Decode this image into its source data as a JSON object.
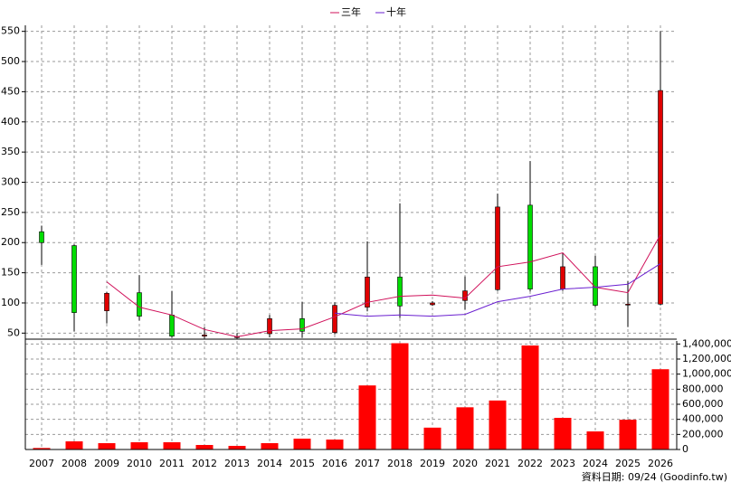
{
  "chart_data": [
    {
      "type": "candlestick",
      "open": [
        218,
        195,
        87,
        117,
        80,
        45,
        43,
        49,
        74,
        51,
        93,
        143,
        97,
        104,
        122,
        262,
        123,
        160,
        98,
        98
      ],
      "high": [
        228,
        197,
        118,
        146,
        120,
        60,
        50,
        80,
        102,
        101,
        202,
        265,
        103,
        144,
        281,
        335,
        183,
        178,
        136,
        550
      ],
      "low": [
        163,
        53,
        66,
        71,
        42,
        41,
        41,
        43,
        42,
        48,
        86,
        75,
        95,
        89,
        120,
        119,
        120,
        93,
        60,
        96
      ],
      "close": [
        200,
        84,
        116,
        78,
        45,
        47,
        44,
        74,
        53,
        96,
        143,
        95,
        100,
        120,
        259,
        123,
        160,
        96,
        98,
        452
      ],
      "up_color": "#e00000",
      "down_color": "#00dd00",
      "series": [
        {
          "name": "三年",
          "color": "#d0105a",
          "values": [
            null,
            null,
            135,
            93,
            80,
            56,
            44,
            54,
            57,
            77,
            101,
            111,
            113,
            108,
            160,
            168,
            183,
            126,
            117,
            213
          ]
        },
        {
          "name": "十年",
          "color": "#6a1fd0",
          "values": [
            null,
            null,
            null,
            null,
            null,
            null,
            null,
            null,
            null,
            83,
            78,
            80,
            78,
            81,
            102,
            111,
            123,
            126,
            131,
            165
          ]
        }
      ],
      "ylim": [
        40,
        560
      ],
      "yticks": [
        50,
        100,
        150,
        200,
        250,
        300,
        350,
        400,
        450,
        500,
        550
      ],
      "grid": true
    },
    {
      "type": "bar",
      "categories": [
        "2007",
        "2008",
        "2009",
        "2010",
        "2011",
        "2012",
        "2013",
        "2014",
        "2015",
        "2016",
        "2017",
        "2018",
        "2019",
        "2020",
        "2021",
        "2022",
        "2023",
        "2024",
        "2025",
        "2026"
      ],
      "values": [
        20000,
        108000,
        84000,
        96000,
        96000,
        60000,
        48000,
        84000,
        144000,
        132000,
        850000,
        1410000,
        290000,
        560000,
        650000,
        1380000,
        420000,
        240000,
        395000,
        1065000
      ],
      "color": "#ff0000",
      "ylim": [
        0,
        1440000
      ],
      "yticks": [
        0,
        {
          "value": 200000,
          "label": "200,000"
        },
        {
          "value": 400000,
          "label": "400,000"
        },
        {
          "value": 600000,
          "label": "600,000"
        },
        {
          "value": 800000,
          "label": "800,000"
        },
        {
          "value": 1000000,
          "label": "1,000,000"
        },
        {
          "value": 1200000,
          "label": "1,200,000"
        },
        {
          "value": 1400000,
          "label": "1,400,000"
        }
      ],
      "grid": true,
      "annotation": "資料日期: 09/24  (Goodinfo.tw)"
    }
  ]
}
